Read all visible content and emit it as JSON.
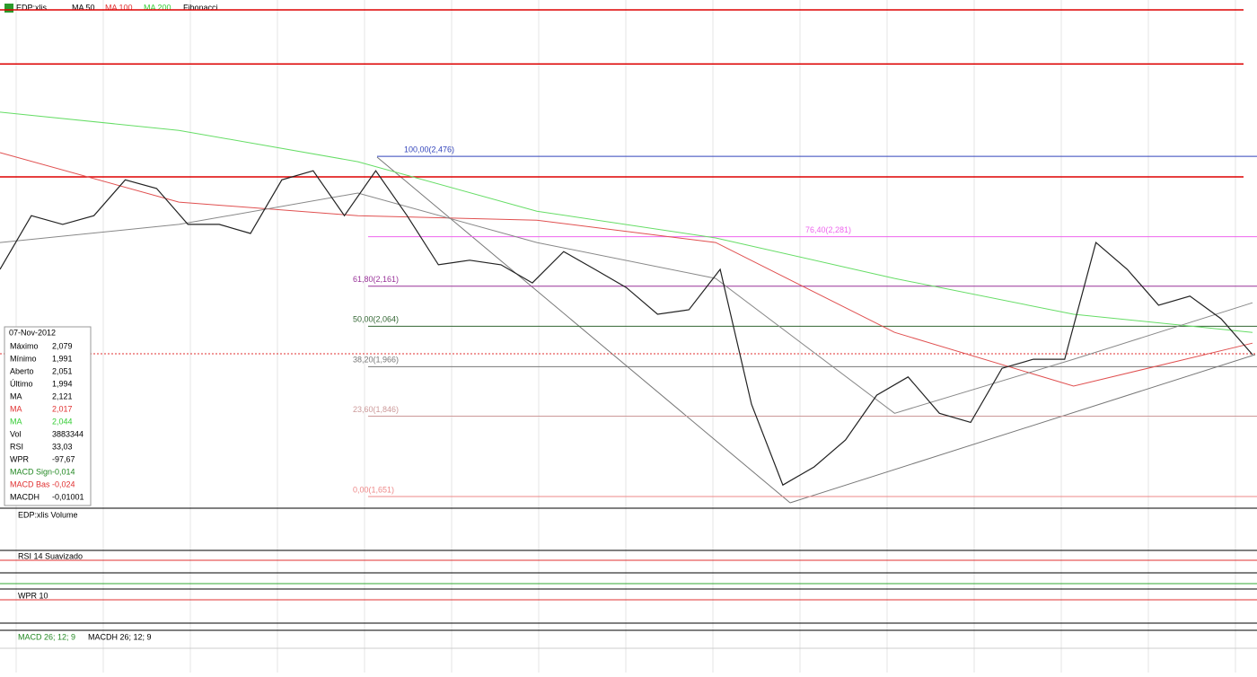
{
  "toolbar": {
    "symbol": "EDP:xlis",
    "ma50": "MA 50",
    "ma100": "MA 100",
    "ma200": "MA 200",
    "fibonacci": "Fibonacci"
  },
  "chart": {
    "ylim": [
      1.625,
      2.855
    ],
    "closes": [
      2.202,
      2.332,
      2.311,
      2.332,
      2.419,
      2.398,
      2.311,
      2.311,
      2.289,
      2.419,
      2.441,
      2.332,
      2.441,
      2.332,
      2.213,
      2.224,
      2.213,
      2.169,
      2.245,
      2.202,
      2.158,
      2.093,
      2.104,
      2.202,
      1.875,
      1.679,
      1.723,
      1.788,
      1.897,
      1.941,
      1.853,
      1.831,
      1.962,
      1.984,
      1.984,
      2.267,
      2.202,
      2.115,
      2.137,
      2.082,
      1.995
    ],
    "ma50": {
      "color": "#888888",
      "values": [
        2.267,
        2.311,
        2.387,
        2.267,
        2.18,
        1.853,
        1.984,
        2.121
      ]
    },
    "ma100": {
      "color": "#e05050",
      "values": [
        2.485,
        2.365,
        2.332,
        2.321,
        2.267,
        2.049,
        1.919,
        2.023
      ]
    },
    "ma200": {
      "color": "#66dd66",
      "values": [
        2.583,
        2.539,
        2.463,
        2.343,
        2.278,
        2.18,
        2.093,
        2.049
      ]
    },
    "levels": [
      2.831,
      2.7,
      2.426
    ],
    "fib": [
      {
        "label": "100,00(2,476)",
        "price": 2.476,
        "color": "#3344bb"
      },
      {
        "label": "76,40(2,281)",
        "price": 2.281,
        "color": "#ee66ee"
      },
      {
        "label": "61,80(2,161)",
        "price": 2.161,
        "color": "#993399"
      },
      {
        "label": "50,00(2,064)",
        "price": 2.064,
        "color": "#336633"
      },
      {
        "label": "38,20(1,966)",
        "price": 1.966,
        "color": "#777777"
      },
      {
        "label": "23,60(1,846)",
        "price": 1.846,
        "color": "#cc9999"
      },
      {
        "label": "0,00(1,651)",
        "price": 1.651,
        "color": "#ee8888"
      }
    ]
  },
  "info": {
    "date": "07-Nov-2012",
    "rows": [
      {
        "label": "Máximo",
        "value": "2,079",
        "color": "#000"
      },
      {
        "label": "Mínimo",
        "value": "1,991",
        "color": "#000"
      },
      {
        "label": "Aberto",
        "value": "2,051",
        "color": "#000"
      },
      {
        "label": "Último",
        "value": "1,994",
        "color": "#000"
      },
      {
        "label": "MA",
        "value": "2,121",
        "color": "#000"
      },
      {
        "label": "MA",
        "value": "2,017",
        "color": "#e03030"
      },
      {
        "label": "MA",
        "value": "2,044",
        "color": "#33cc33"
      },
      {
        "label": "Vol",
        "value": "3883344",
        "color": "#000"
      },
      {
        "label": "RSI",
        "value": "33,03",
        "color": "#000"
      },
      {
        "label": "WPR",
        "value": "-97,67",
        "color": "#000"
      },
      {
        "label": "MACD Sign",
        "value": "-0,014",
        "color": "#228822"
      },
      {
        "label": "MACD Bas",
        "value": "-0,024",
        "color": "#e03030"
      },
      {
        "label": "MACDH",
        "value": "-0,01001",
        "color": "#000"
      }
    ]
  },
  "panels": [
    "EDP:xlis Volume",
    "RSI 14 Suavizado",
    "WPR 10",
    "MACD 26; 12; 9",
    "MACDH 26; 12; 9"
  ]
}
